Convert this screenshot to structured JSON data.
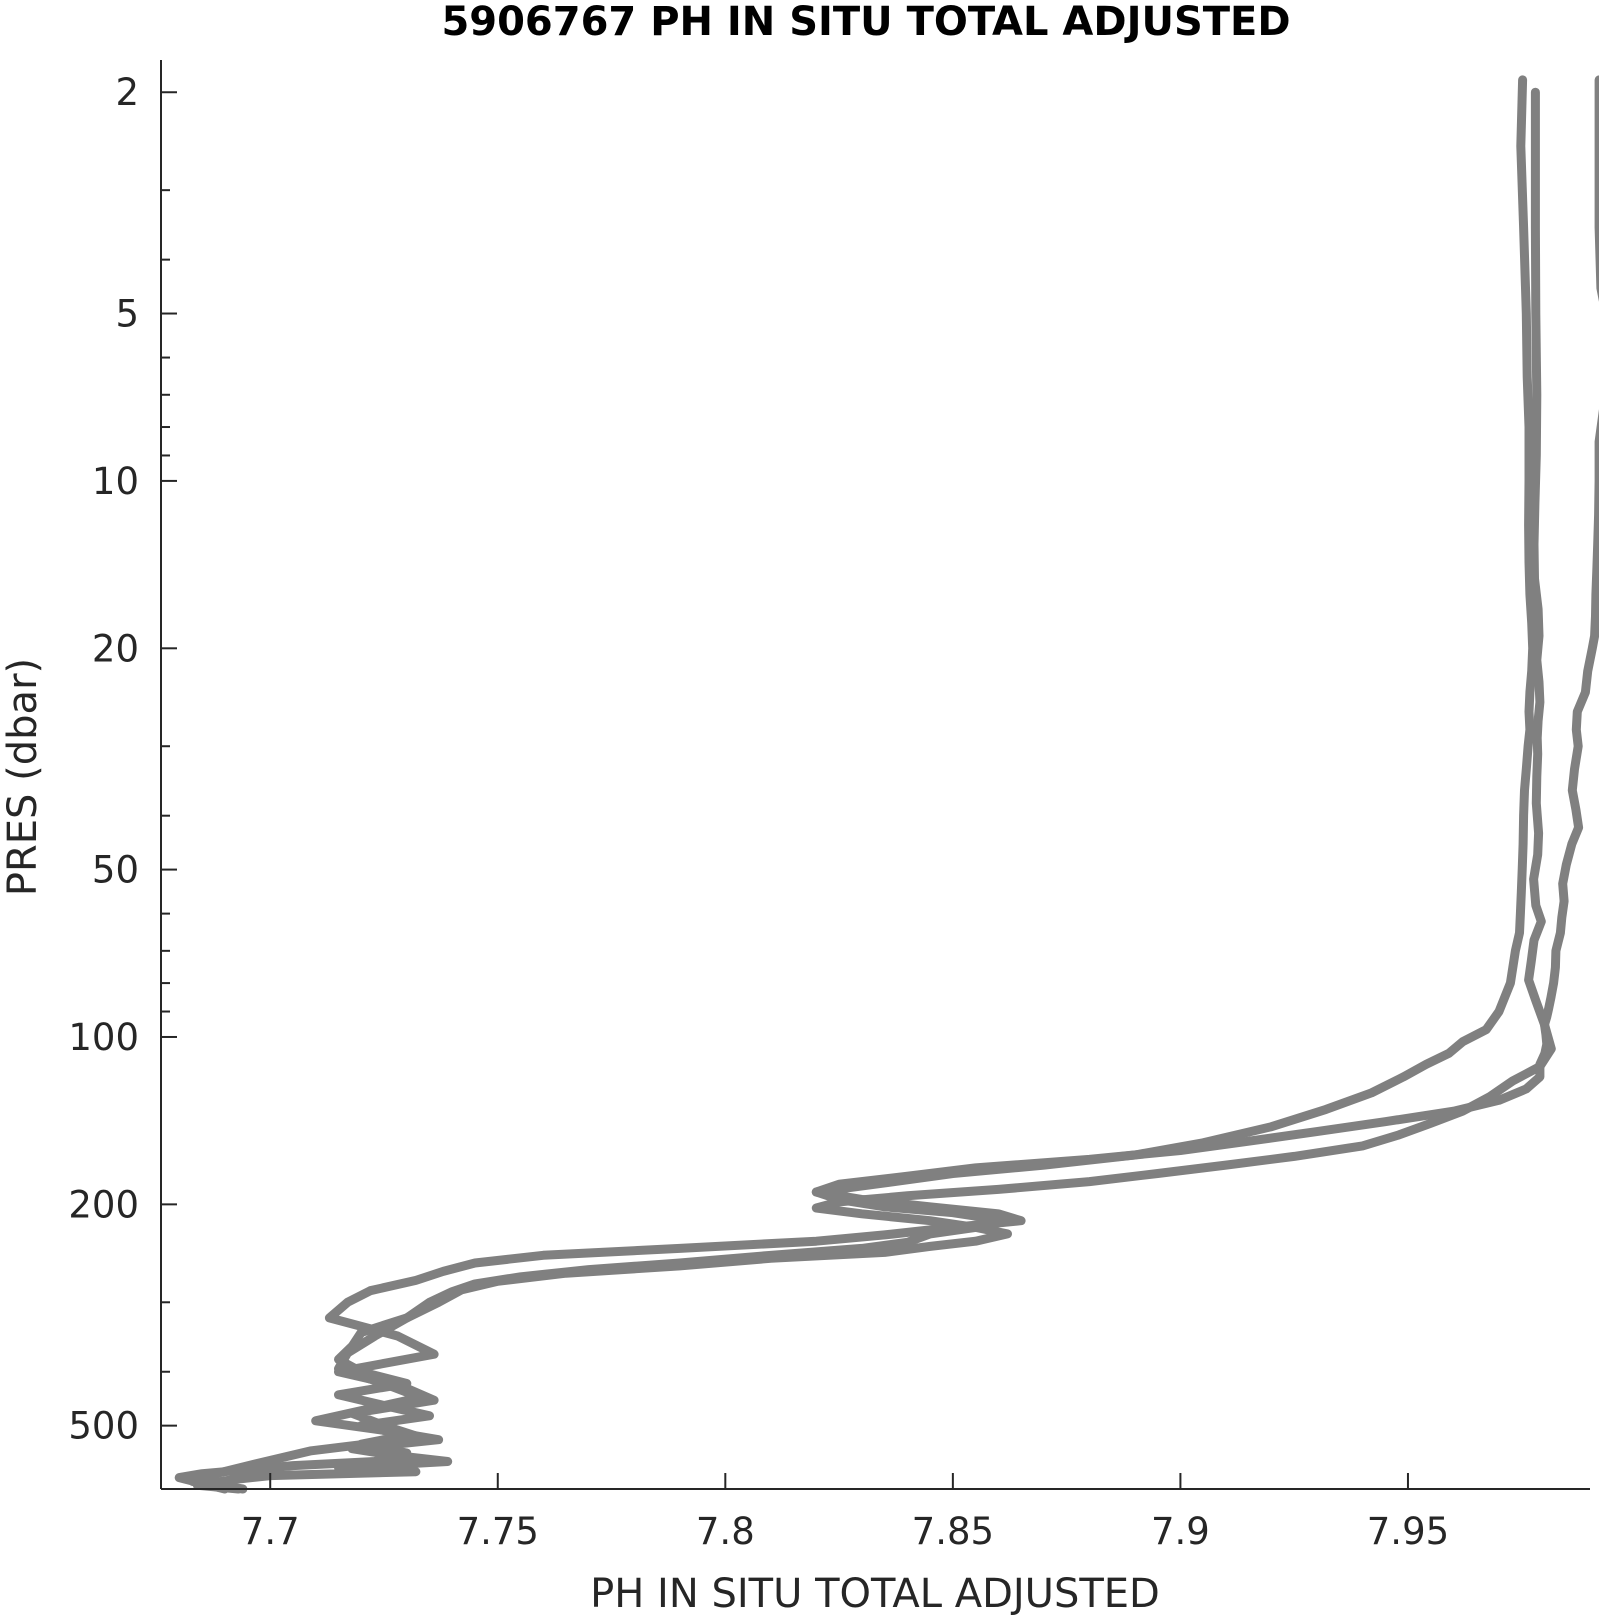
{
  "chart_data": {
    "type": "line",
    "title": "5906767  PH IN SITU TOTAL ADJUSTED",
    "xlabel": "PH IN SITU TOTAL ADJUSTED",
    "ylabel": "PRES (dbar)",
    "x_scale": "linear",
    "y_scale": "log",
    "y_reversed": true,
    "xlim": [
      7.676,
      7.99
    ],
    "ylim": [
      1.75,
      650
    ],
    "x_ticks": [
      7.7,
      7.75,
      7.8,
      7.85,
      7.9,
      7.95
    ],
    "x_tick_labels": [
      "7.7",
      "7.75",
      "7.8",
      "7.85",
      "7.9",
      "7.95"
    ],
    "y_ticks": [
      2,
      5,
      10,
      20,
      50,
      100,
      200,
      500
    ],
    "y_tick_labels": [
      "2",
      "5",
      "10",
      "20",
      "50",
      "100",
      "200",
      "500"
    ],
    "y_minor_ticks": [
      3,
      4,
      6,
      7,
      8,
      9,
      30,
      40,
      60,
      70,
      80,
      90,
      300,
      400
    ],
    "grid": false,
    "line_color": "#808080",
    "series": [
      {
        "x": [
          7.9752,
          7.9748,
          7.9754,
          7.976,
          7.9762,
          7.9766,
          7.9766,
          7.9765,
          7.9766,
          7.9768,
          7.9772,
          7.9774,
          7.9772,
          7.9768,
          7.9766,
          7.9768,
          7.9764,
          7.976,
          7.9756,
          7.9754,
          7.9753,
          7.9751,
          7.9749,
          7.9747,
          7.9745,
          7.9736,
          7.9725,
          7.97,
          7.9672,
          7.962,
          7.959,
          7.954,
          7.949,
          7.942,
          7.932,
          7.92,
          7.905,
          7.89,
          7.87,
          7.85,
          7.835,
          7.82,
          7.825,
          7.835,
          7.85,
          7.86,
          7.855,
          7.845,
          7.84,
          7.83,
          7.81,
          7.79,
          7.77,
          7.755,
          7.745,
          7.74,
          7.735,
          7.73,
          7.72,
          7.718,
          7.715,
          7.72,
          7.73,
          7.715,
          7.725,
          7.735,
          7.72,
          7.73,
          7.72,
          7.73,
          7.723,
          7.705,
          7.695,
          7.685,
          7.68,
          7.685,
          7.69
        ],
        "y": [
          1.9,
          2.5,
          3.5,
          5,
          6.5,
          8,
          10,
          12,
          14,
          16,
          18,
          20,
          22,
          24,
          26,
          28,
          30,
          33,
          36,
          40,
          45,
          50,
          55,
          60,
          65,
          70,
          80,
          90,
          97,
          102,
          107,
          112,
          118,
          126,
          135,
          145,
          155,
          163,
          170,
          176,
          183,
          190,
          196,
          202,
          207,
          213,
          220,
          226,
          234,
          240,
          247,
          255,
          262,
          270,
          278,
          287,
          300,
          320,
          340,
          360,
          380,
          400,
          420,
          440,
          460,
          480,
          500,
          520,
          540,
          560,
          580,
          590,
          600,
          610,
          620,
          635,
          650
        ]
      },
      {
        "x": [
          7.978,
          7.978,
          7.978,
          7.9781,
          7.9783,
          7.9782,
          7.9779,
          7.9777,
          7.9778,
          7.9786,
          7.9788,
          7.9783,
          7.9788,
          7.979,
          7.9786,
          7.9784,
          7.9785,
          7.9783,
          7.9782,
          7.9787,
          7.9785,
          7.9776,
          7.9781,
          7.9793,
          7.9777,
          7.9771,
          7.9765,
          7.9781,
          7.98,
          7.9815,
          7.979,
          7.973,
          7.968,
          7.962,
          7.955,
          7.948,
          7.94,
          7.925,
          7.91,
          7.895,
          7.88,
          7.86,
          7.84,
          7.825,
          7.82,
          7.83,
          7.845,
          7.855,
          7.862,
          7.855,
          7.845,
          7.835,
          7.81,
          7.79,
          7.765,
          7.75,
          7.742,
          7.737,
          7.73,
          7.723,
          7.717,
          7.715,
          7.725,
          7.733,
          7.72,
          7.71,
          7.725,
          7.737,
          7.718,
          7.727,
          7.739,
          7.715,
          7.732,
          7.7,
          7.692,
          7.684,
          7.693
        ],
        "y": [
          2.0,
          2.6,
          3.5,
          5,
          7,
          9,
          11,
          13,
          15,
          17,
          19,
          21,
          23,
          25,
          27,
          29,
          31,
          34,
          38,
          43,
          47,
          52,
          58,
          62,
          67,
          73,
          79,
          86,
          95,
          105,
          113,
          120,
          128,
          136,
          143,
          150,
          157,
          164,
          170,
          176,
          182,
          188,
          193,
          198,
          203,
          208,
          214,
          220,
          226,
          233,
          238,
          244,
          250,
          258,
          266,
          275,
          285,
          300,
          320,
          345,
          370,
          395,
          420,
          445,
          470,
          490,
          510,
          530,
          550,
          565,
          580,
          595,
          605,
          615,
          625,
          640,
          650
        ]
      },
      {
        "x": [
          7.992,
          7.992,
          7.992,
          7.9924,
          7.995,
          7.9934,
          7.992,
          7.992,
          7.9919,
          7.9917,
          7.9915,
          7.9913,
          7.9912,
          7.991,
          7.9905,
          7.9895,
          7.989,
          7.9872,
          7.987,
          7.9874,
          7.9866,
          7.9861,
          7.9869,
          7.9875,
          7.986,
          7.9848,
          7.984,
          7.9843,
          7.9838,
          7.9835,
          7.9825,
          7.9824,
          7.982,
          7.9814,
          7.9809,
          7.9805,
          7.98,
          7.9803,
          7.9805,
          7.9801,
          7.979,
          7.979,
          7.976,
          7.97,
          7.96,
          7.945,
          7.93,
          7.915,
          7.9,
          7.88,
          7.855,
          7.84,
          7.825,
          7.82,
          7.83,
          7.845,
          7.86,
          7.865,
          7.85,
          7.835,
          7.82,
          7.79,
          7.76,
          7.745,
          7.738,
          7.732,
          7.722,
          7.717,
          7.713,
          7.728,
          7.736,
          7.715,
          7.729,
          7.736,
          7.718,
          7.725,
          7.733,
          7.709,
          7.697,
          7.688,
          7.683,
          7.694
        ],
        "y": [
          1.9,
          2.5,
          3.5,
          4.5,
          5.8,
          7.0,
          8.5,
          10,
          11.5,
          13,
          14.5,
          16,
          17.5,
          19,
          20,
          22,
          24,
          26,
          28,
          30,
          33,
          36,
          39,
          42,
          45,
          49,
          53,
          57,
          61,
          65,
          70,
          75,
          80,
          85,
          89,
          92,
          95,
          99,
          103,
          107,
          112,
          118,
          124,
          130,
          136,
          142,
          148,
          154,
          160,
          166,
          172,
          178,
          184,
          190,
          196,
          202,
          208,
          214,
          220,
          227,
          233,
          240,
          247,
          255,
          264,
          274,
          286,
          300,
          320,
          345,
          372,
          400,
          425,
          450,
          475,
          500,
          525,
          555,
          585,
          610,
          630,
          650
        ]
      }
    ]
  }
}
